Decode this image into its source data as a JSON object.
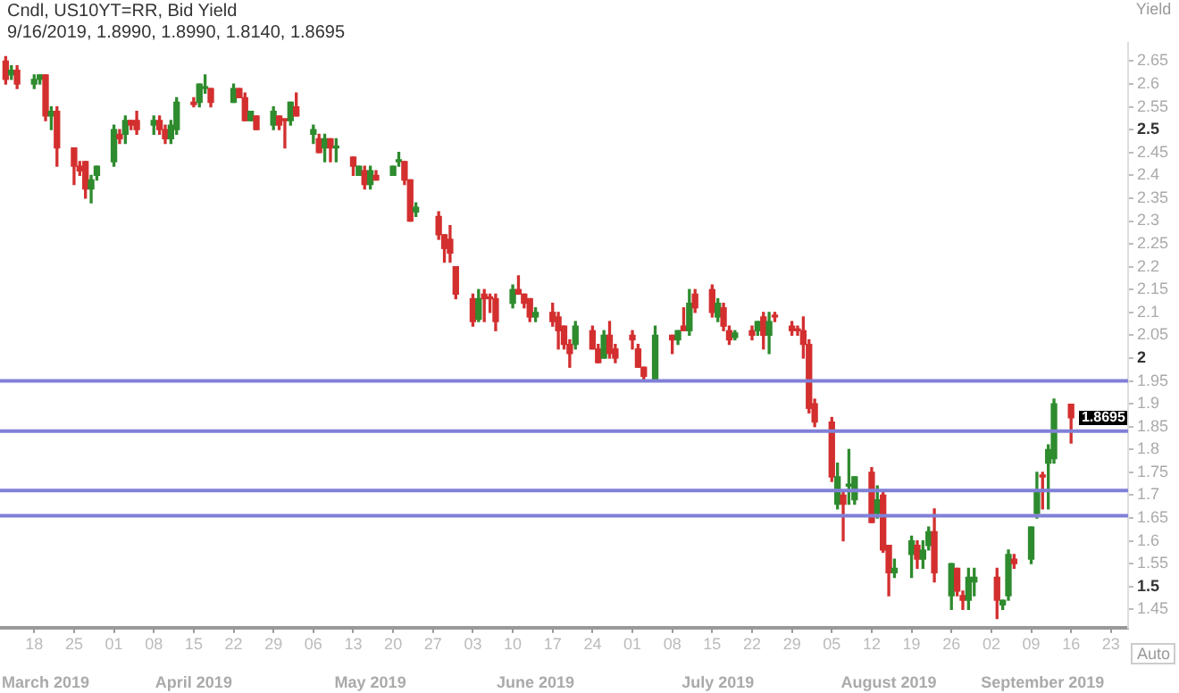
{
  "chart_data": {
    "type": "candlestick",
    "title": "Cndl, US10YT=RR, Bid Yield",
    "subtitle": "9/16/2019, 1.8990, 1.8990, 1.8140, 1.8695",
    "ylabel": "Yield",
    "x": [
      "2019-03-13",
      "2019-03-14",
      "2019-03-15",
      "2019-03-18",
      "2019-03-19",
      "2019-03-20",
      "2019-03-21",
      "2019-03-22",
      "2019-03-25",
      "2019-03-26",
      "2019-03-27",
      "2019-03-28",
      "2019-03-29",
      "2019-04-01",
      "2019-04-02",
      "2019-04-03",
      "2019-04-04",
      "2019-04-05",
      "2019-04-08",
      "2019-04-09",
      "2019-04-10",
      "2019-04-11",
      "2019-04-12",
      "2019-04-15",
      "2019-04-16",
      "2019-04-17",
      "2019-04-18",
      "2019-04-22",
      "2019-04-23",
      "2019-04-24",
      "2019-04-25",
      "2019-04-26",
      "2019-04-29",
      "2019-04-30",
      "2019-05-01",
      "2019-05-02",
      "2019-05-03",
      "2019-05-06",
      "2019-05-07",
      "2019-05-08",
      "2019-05-09",
      "2019-05-10",
      "2019-05-13",
      "2019-05-14",
      "2019-05-15",
      "2019-05-16",
      "2019-05-17",
      "2019-05-20",
      "2019-05-21",
      "2019-05-22",
      "2019-05-23",
      "2019-05-24",
      "2019-05-28",
      "2019-05-29",
      "2019-05-30",
      "2019-05-31",
      "2019-06-03",
      "2019-06-04",
      "2019-06-05",
      "2019-06-06",
      "2019-06-07",
      "2019-06-10",
      "2019-06-11",
      "2019-06-12",
      "2019-06-13",
      "2019-06-14",
      "2019-06-17",
      "2019-06-18",
      "2019-06-19",
      "2019-06-20",
      "2019-06-21",
      "2019-06-24",
      "2019-06-25",
      "2019-06-26",
      "2019-06-27",
      "2019-06-28",
      "2019-07-01",
      "2019-07-02",
      "2019-07-03",
      "2019-07-05",
      "2019-07-08",
      "2019-07-09",
      "2019-07-10",
      "2019-07-11",
      "2019-07-12",
      "2019-07-15",
      "2019-07-16",
      "2019-07-17",
      "2019-07-18",
      "2019-07-19",
      "2019-07-22",
      "2019-07-23",
      "2019-07-24",
      "2019-07-25",
      "2019-07-26",
      "2019-07-29",
      "2019-07-30",
      "2019-07-31",
      "2019-08-01",
      "2019-08-02",
      "2019-08-05",
      "2019-08-06",
      "2019-08-07",
      "2019-08-08",
      "2019-08-09",
      "2019-08-12",
      "2019-08-13",
      "2019-08-14",
      "2019-08-15",
      "2019-08-16",
      "2019-08-19",
      "2019-08-20",
      "2019-08-21",
      "2019-08-22",
      "2019-08-23",
      "2019-08-26",
      "2019-08-27",
      "2019-08-28",
      "2019-08-29",
      "2019-08-30",
      "2019-09-03",
      "2019-09-04",
      "2019-09-05",
      "2019-09-06",
      "2019-09-09",
      "2019-09-10",
      "2019-09-11",
      "2019-09-12",
      "2019-09-13",
      "2019-09-16"
    ],
    "ohlc": [
      [
        2.65,
        2.66,
        2.6,
        2.61
      ],
      [
        2.62,
        2.64,
        2.61,
        2.63
      ],
      [
        2.63,
        2.64,
        2.59,
        2.6
      ],
      [
        2.6,
        2.62,
        2.59,
        2.61
      ],
      [
        2.61,
        2.62,
        2.6,
        2.62
      ],
      [
        2.62,
        2.62,
        2.52,
        2.53
      ],
      [
        2.53,
        2.55,
        2.5,
        2.54
      ],
      [
        2.54,
        2.55,
        2.42,
        2.46
      ],
      [
        2.46,
        2.46,
        2.38,
        2.42
      ],
      [
        2.42,
        2.43,
        2.4,
        2.41
      ],
      [
        2.43,
        2.43,
        2.35,
        2.37
      ],
      [
        2.37,
        2.4,
        2.34,
        2.39
      ],
      [
        2.4,
        2.42,
        2.39,
        2.42
      ],
      [
        2.43,
        2.51,
        2.42,
        2.5
      ],
      [
        2.49,
        2.5,
        2.47,
        2.48
      ],
      [
        2.49,
        2.53,
        2.47,
        2.52
      ],
      [
        2.52,
        2.52,
        2.5,
        2.51
      ],
      [
        2.52,
        2.54,
        2.49,
        2.5
      ],
      [
        2.51,
        2.53,
        2.49,
        2.52
      ],
      [
        2.52,
        2.53,
        2.49,
        2.5
      ],
      [
        2.5,
        2.51,
        2.47,
        2.48
      ],
      [
        2.48,
        2.52,
        2.47,
        2.51
      ],
      [
        2.5,
        2.57,
        2.49,
        2.56
      ],
      [
        2.56,
        2.57,
        2.55,
        2.555
      ],
      [
        2.56,
        2.6,
        2.55,
        2.6
      ],
      [
        2.59,
        2.62,
        2.58,
        2.59
      ],
      [
        2.59,
        2.59,
        2.55,
        2.56
      ],
      [
        2.56,
        2.6,
        2.56,
        2.59
      ],
      [
        2.59,
        2.59,
        2.57,
        2.57
      ],
      [
        2.57,
        2.58,
        2.52,
        2.52
      ],
      [
        2.52,
        2.54,
        2.52,
        2.54
      ],
      [
        2.53,
        2.53,
        2.5,
        2.5
      ],
      [
        2.51,
        2.55,
        2.5,
        2.54
      ],
      [
        2.53,
        2.53,
        2.5,
        2.51
      ],
      [
        2.52,
        2.52,
        2.46,
        2.52
      ],
      [
        2.52,
        2.56,
        2.51,
        2.56
      ],
      [
        2.55,
        2.58,
        2.53,
        2.53
      ],
      [
        2.49,
        2.51,
        2.47,
        2.5
      ],
      [
        2.48,
        2.49,
        2.45,
        2.45
      ],
      [
        2.46,
        2.49,
        2.43,
        2.48
      ],
      [
        2.48,
        2.48,
        2.43,
        2.46
      ],
      [
        2.46,
        2.48,
        2.43,
        2.46
      ],
      [
        2.44,
        2.44,
        2.4,
        2.42
      ],
      [
        2.4,
        2.42,
        2.4,
        2.42
      ],
      [
        2.41,
        2.42,
        2.37,
        2.38
      ],
      [
        2.38,
        2.42,
        2.37,
        2.41
      ],
      [
        2.4,
        2.41,
        2.39,
        2.39
      ],
      [
        2.4,
        2.42,
        2.4,
        2.42
      ],
      [
        2.43,
        2.45,
        2.42,
        2.43
      ],
      [
        2.43,
        2.43,
        2.38,
        2.39
      ],
      [
        2.39,
        2.39,
        2.3,
        2.3
      ],
      [
        2.32,
        2.34,
        2.31,
        2.33
      ],
      [
        2.31,
        2.32,
        2.26,
        2.27
      ],
      [
        2.27,
        2.27,
        2.21,
        2.24
      ],
      [
        2.26,
        2.29,
        2.21,
        2.23
      ],
      [
        2.2,
        2.2,
        2.13,
        2.14
      ],
      [
        2.13,
        2.14,
        2.07,
        2.08
      ],
      [
        2.085,
        2.15,
        2.08,
        2.13
      ],
      [
        2.14,
        2.15,
        2.08,
        2.13
      ],
      [
        2.13,
        2.14,
        2.1,
        2.13
      ],
      [
        2.13,
        2.14,
        2.06,
        2.08
      ],
      [
        2.12,
        2.16,
        2.11,
        2.15
      ],
      [
        2.15,
        2.18,
        2.14,
        2.14
      ],
      [
        2.14,
        2.14,
        2.11,
        2.12
      ],
      [
        2.13,
        2.13,
        2.08,
        2.09
      ],
      [
        2.09,
        2.11,
        2.08,
        2.1
      ],
      [
        2.1,
        2.12,
        2.07,
        2.08
      ],
      [
        2.09,
        2.1,
        2.02,
        2.06
      ],
      [
        2.07,
        2.07,
        2.02,
        2.03
      ],
      [
        2.03,
        2.04,
        1.98,
        2.01
      ],
      [
        2.03,
        2.08,
        2.02,
        2.07
      ],
      [
        2.06,
        2.07,
        2.02,
        2.02
      ],
      [
        2.02,
        2.03,
        1.99,
        1.99
      ],
      [
        2.0,
        2.06,
        2.0,
        2.05
      ],
      [
        2.05,
        2.08,
        2.0,
        2.01
      ],
      [
        2.02,
        2.03,
        1.99,
        2.0
      ],
      [
        2.05,
        2.06,
        2.02,
        2.04
      ],
      [
        2.02,
        2.03,
        1.98,
        1.98
      ],
      [
        1.98,
        1.98,
        1.95,
        1.96
      ],
      [
        1.95,
        2.07,
        1.95,
        2.05
      ],
      [
        2.05,
        2.05,
        2.01,
        2.04
      ],
      [
        2.04,
        2.06,
        2.03,
        2.06
      ],
      [
        2.07,
        2.11,
        2.06,
        2.06
      ],
      [
        2.06,
        2.15,
        2.05,
        2.12
      ],
      [
        2.14,
        2.15,
        2.1,
        2.11
      ],
      [
        2.15,
        2.16,
        2.09,
        2.1
      ],
      [
        2.09,
        2.13,
        2.08,
        2.12
      ],
      [
        2.11,
        2.12,
        2.06,
        2.07
      ],
      [
        2.06,
        2.07,
        2.03,
        2.04
      ],
      [
        2.045,
        2.06,
        2.04,
        2.055
      ],
      [
        2.06,
        2.07,
        2.04,
        2.05
      ],
      [
        2.06,
        2.08,
        2.05,
        2.08
      ],
      [
        2.09,
        2.1,
        2.02,
        2.05
      ],
      [
        2.05,
        2.1,
        2.01,
        2.08
      ],
      [
        2.09,
        2.1,
        2.08,
        2.09
      ],
      [
        2.07,
        2.08,
        2.05,
        2.06
      ],
      [
        2.06,
        2.07,
        2.05,
        2.06
      ],
      [
        2.06,
        2.09,
        2.0,
        2.03
      ],
      [
        2.03,
        2.04,
        1.88,
        1.89
      ],
      [
        1.9,
        1.91,
        1.85,
        1.86
      ],
      [
        1.86,
        1.87,
        1.73,
        1.74
      ],
      [
        1.68,
        1.77,
        1.67,
        1.74
      ],
      [
        1.7,
        1.71,
        1.6,
        1.68
      ],
      [
        1.72,
        1.8,
        1.68,
        1.72
      ],
      [
        1.69,
        1.74,
        1.68,
        1.74
      ],
      [
        1.75,
        1.76,
        1.64,
        1.64
      ],
      [
        1.66,
        1.72,
        1.65,
        1.69
      ],
      [
        1.7,
        1.71,
        1.575,
        1.58
      ],
      [
        1.59,
        1.59,
        1.48,
        1.53
      ],
      [
        1.53,
        1.56,
        1.52,
        1.54
      ],
      [
        1.57,
        1.61,
        1.52,
        1.6
      ],
      [
        1.59,
        1.6,
        1.54,
        1.56
      ],
      [
        1.56,
        1.6,
        1.54,
        1.58
      ],
      [
        1.59,
        1.63,
        1.58,
        1.62
      ],
      [
        1.62,
        1.67,
        1.51,
        1.53
      ],
      [
        1.48,
        1.55,
        1.45,
        1.55
      ],
      [
        1.54,
        1.54,
        1.48,
        1.49
      ],
      [
        1.48,
        1.49,
        1.45,
        1.47
      ],
      [
        1.47,
        1.54,
        1.45,
        1.52
      ],
      [
        1.51,
        1.54,
        1.48,
        1.52
      ],
      [
        1.52,
        1.54,
        1.43,
        1.47
      ],
      [
        1.46,
        1.47,
        1.45,
        1.47
      ],
      [
        1.48,
        1.58,
        1.47,
        1.57
      ],
      [
        1.56,
        1.57,
        1.54,
        1.55
      ],
      [
        1.56,
        1.63,
        1.55,
        1.63
      ],
      [
        1.66,
        1.75,
        1.65,
        1.71
      ],
      [
        1.74,
        1.75,
        1.67,
        1.74
      ],
      [
        1.77,
        1.81,
        1.67,
        1.8
      ],
      [
        1.78,
        1.91,
        1.77,
        1.9
      ],
      [
        1.899,
        1.899,
        1.814,
        1.8695
      ]
    ],
    "colors": [
      "#d32f2f",
      "#2e8b2e",
      "#d32f2f",
      "#2e8b2e",
      "#2e8b2e",
      "#d32f2f",
      "#2e8b2e",
      "#d32f2f",
      "#d32f2f",
      "#d32f2f",
      "#d32f2f",
      "#2e8b2e",
      "#2e8b2e",
      "#2e8b2e",
      "#d32f2f",
      "#2e8b2e",
      "#d32f2f",
      "#d32f2f",
      "#2e8b2e",
      "#d32f2f",
      "#d32f2f",
      "#2e8b2e",
      "#2e8b2e",
      "#d32f2f",
      "#2e8b2e",
      "#2e8b2e",
      "#d32f2f",
      "#2e8b2e",
      "#d32f2f",
      "#d32f2f",
      "#2e8b2e",
      "#d32f2f",
      "#2e8b2e",
      "#d32f2f",
      "#d32f2f",
      "#2e8b2e",
      "#d32f2f",
      "#2e8b2e",
      "#d32f2f",
      "#2e8b2e",
      "#d32f2f",
      "#2e8b2e",
      "#d32f2f",
      "#2e8b2e",
      "#d32f2f",
      "#2e8b2e",
      "#d32f2f",
      "#2e8b2e",
      "#2e8b2e",
      "#d32f2f",
      "#d32f2f",
      "#2e8b2e",
      "#d32f2f",
      "#d32f2f",
      "#d32f2f",
      "#d32f2f",
      "#d32f2f",
      "#2e8b2e",
      "#d32f2f",
      "#d32f2f",
      "#d32f2f",
      "#2e8b2e",
      "#d32f2f",
      "#d32f2f",
      "#d32f2f",
      "#2e8b2e",
      "#d32f2f",
      "#d32f2f",
      "#d32f2f",
      "#d32f2f",
      "#2e8b2e",
      "#d32f2f",
      "#d32f2f",
      "#2e8b2e",
      "#d32f2f",
      "#d32f2f",
      "#d32f2f",
      "#d32f2f",
      "#d32f2f",
      "#2e8b2e",
      "#d32f2f",
      "#2e8b2e",
      "#d32f2f",
      "#2e8b2e",
      "#d32f2f",
      "#d32f2f",
      "#2e8b2e",
      "#d32f2f",
      "#d32f2f",
      "#2e8b2e",
      "#d32f2f",
      "#2e8b2e",
      "#d32f2f",
      "#2e8b2e",
      "#d32f2f",
      "#d32f2f",
      "#d32f2f",
      "#d32f2f",
      "#d32f2f",
      "#d32f2f",
      "#d32f2f",
      "#2e8b2e",
      "#d32f2f",
      "#2e8b2e",
      "#2e8b2e",
      "#d32f2f",
      "#2e8b2e",
      "#d32f2f",
      "#d32f2f",
      "#2e8b2e",
      "#2e8b2e",
      "#d32f2f",
      "#2e8b2e",
      "#2e8b2e",
      "#d32f2f",
      "#2e8b2e",
      "#d32f2f",
      "#d32f2f",
      "#2e8b2e",
      "#2e8b2e",
      "#d32f2f",
      "#2e8b2e",
      "#2e8b2e",
      "#d32f2f",
      "#2e8b2e",
      "#2e8b2e",
      "#d32f2f",
      "#2e8b2e",
      "#2e8b2e",
      "#d32f2f"
    ],
    "xlim": [
      "2019-03-12",
      "2019-09-26"
    ],
    "xticks": [
      {
        "value": "2019-03-18",
        "label": "18"
      },
      {
        "value": "2019-03-25",
        "label": "25"
      },
      {
        "value": "2019-04-01",
        "label": "01"
      },
      {
        "value": "2019-04-08",
        "label": "08"
      },
      {
        "value": "2019-04-15",
        "label": "15"
      },
      {
        "value": "2019-04-22",
        "label": "22"
      },
      {
        "value": "2019-04-29",
        "label": "29"
      },
      {
        "value": "2019-05-06",
        "label": "06"
      },
      {
        "value": "2019-05-13",
        "label": "13"
      },
      {
        "value": "2019-05-20",
        "label": "20"
      },
      {
        "value": "2019-05-27",
        "label": "27"
      },
      {
        "value": "2019-06-03",
        "label": "03"
      },
      {
        "value": "2019-06-10",
        "label": "10"
      },
      {
        "value": "2019-06-17",
        "label": "17"
      },
      {
        "value": "2019-06-24",
        "label": "24"
      },
      {
        "value": "2019-07-01",
        "label": "01"
      },
      {
        "value": "2019-07-08",
        "label": "08"
      },
      {
        "value": "2019-07-15",
        "label": "15"
      },
      {
        "value": "2019-07-22",
        "label": "22"
      },
      {
        "value": "2019-07-29",
        "label": "29"
      },
      {
        "value": "2019-08-05",
        "label": "05"
      },
      {
        "value": "2019-08-12",
        "label": "12"
      },
      {
        "value": "2019-08-19",
        "label": "19"
      },
      {
        "value": "2019-08-26",
        "label": "26"
      },
      {
        "value": "2019-09-02",
        "label": "02"
      },
      {
        "value": "2019-09-09",
        "label": "09"
      },
      {
        "value": "2019-09-16",
        "label": "16"
      },
      {
        "value": "2019-09-23",
        "label": "23"
      }
    ],
    "x2lim": [
      "2019-03-12",
      "2019-09-26"
    ],
    "x2ticks": [
      {
        "value": "2019-03-20",
        "label": "March 2019"
      },
      {
        "value": "2019-04-15",
        "label": "April 2019"
      },
      {
        "value": "2019-05-16",
        "label": "May 2019"
      },
      {
        "value": "2019-06-14",
        "label": "June 2019"
      },
      {
        "value": "2019-07-16",
        "label": "July 2019"
      },
      {
        "value": "2019-08-15",
        "label": "August 2019"
      },
      {
        "value": "2019-09-11",
        "label": "September 2019"
      }
    ],
    "ylim": [
      1.41,
      2.69
    ],
    "yticks": [
      1.45,
      1.5,
      1.55,
      1.6,
      1.65,
      1.7,
      1.75,
      1.8,
      1.85,
      1.9,
      1.95,
      2,
      2.05,
      2.1,
      2.15,
      2.2,
      2.25,
      2.3,
      2.35,
      2.4,
      2.45,
      2.5,
      2.55,
      2.6,
      2.65
    ],
    "ref_lines": [
      {
        "axis": "y",
        "value": 1.95,
        "color": "#8080d8"
      },
      {
        "axis": "y",
        "value": 1.84,
        "color": "#8080d8"
      },
      {
        "axis": "y",
        "value": 1.71,
        "color": "#8080d8"
      },
      {
        "axis": "y",
        "value": 1.655,
        "color": "#8080d8"
      }
    ],
    "annotations": [
      "1.8695",
      "Auto"
    ]
  }
}
